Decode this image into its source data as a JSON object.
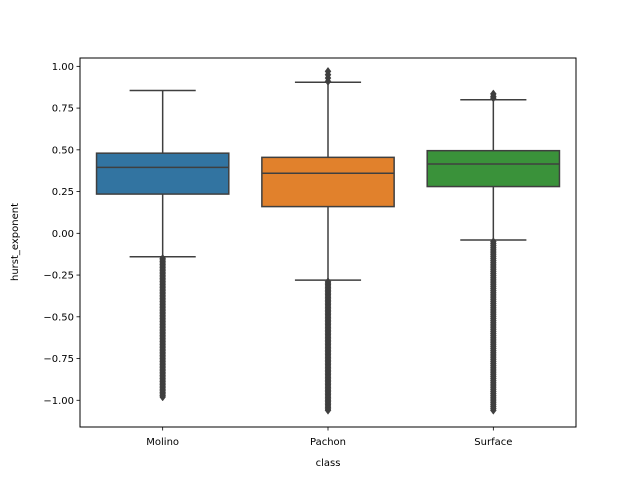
{
  "chart_data": {
    "type": "box",
    "xlabel": "class",
    "ylabel": "hurst_exponent",
    "ylim": [
      -1.16,
      1.05
    ],
    "yticks": [
      1.0,
      0.75,
      0.5,
      0.25,
      0.0,
      -0.25,
      -0.5,
      -0.75,
      -1.0
    ],
    "ytick_labels": [
      "1.00",
      "0.75",
      "0.50",
      "0.25",
      "0.00",
      "−0.25",
      "−0.50",
      "−0.75",
      "−1.00"
    ],
    "categories": [
      "Molino",
      "Pachon",
      "Surface"
    ],
    "boxes": [
      {
        "name": "Molino",
        "color": "#3274a1",
        "whisker_low": -0.14,
        "q1": 0.235,
        "median": 0.395,
        "q3": 0.48,
        "whisker_high": 0.855,
        "outliers_high": [],
        "outliers_low_range": [
          -0.98,
          -0.15
        ]
      },
      {
        "name": "Pachon",
        "color": "#e1812c",
        "whisker_low": -0.28,
        "q1": 0.16,
        "median": 0.36,
        "q3": 0.455,
        "whisker_high": 0.905,
        "outliers_high": [
          0.91,
          0.93,
          0.95,
          0.97
        ],
        "outliers_low_range": [
          -1.06,
          -0.29
        ]
      },
      {
        "name": "Surface",
        "color": "#3a923a",
        "whisker_low": -0.04,
        "q1": 0.28,
        "median": 0.415,
        "q3": 0.495,
        "whisker_high": 0.8,
        "outliers_high": [
          0.81,
          0.82,
          0.835
        ],
        "outliers_low_range": [
          -1.06,
          -0.05
        ]
      }
    ],
    "grid": false
  }
}
